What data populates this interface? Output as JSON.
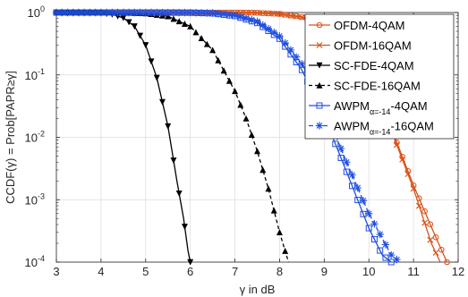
{
  "chart_data": {
    "type": "line",
    "xlabel": "γ in dB",
    "ylabel": "CCDF(γ) = Prob[PAPR≥γ]",
    "xlim": [
      3,
      12
    ],
    "ylim": [
      0.0001,
      1
    ],
    "yscale": "log",
    "grid": true,
    "legend_position": "top-right",
    "x_ticks": [
      "3",
      "4",
      "5",
      "6",
      "7",
      "8",
      "9",
      "10",
      "11",
      "12"
    ],
    "y_ticks": [
      {
        "base": "10",
        "exp": "0"
      },
      {
        "base": "10",
        "exp": "-1"
      },
      {
        "base": "10",
        "exp": "-2"
      },
      {
        "base": "10",
        "exp": "-3"
      },
      {
        "base": "10",
        "exp": "-4"
      }
    ],
    "series": [
      {
        "name": "OFDM-4QAM",
        "color": "#d95319",
        "dash": "",
        "marker": "circle",
        "x": [
          3.0,
          6.0,
          7.0,
          7.5,
          8.0,
          8.5,
          9.0,
          9.5,
          10.0,
          10.5,
          11.0,
          11.5,
          11.75
        ],
        "y": [
          1.0,
          1.0,
          0.999,
          0.99,
          0.95,
          0.85,
          0.6,
          0.3,
          0.085,
          0.014,
          0.0017,
          0.00025,
          0.0001
        ]
      },
      {
        "name": "OFDM-16QAM",
        "color": "#d95319",
        "dash": "",
        "marker": "x",
        "x": [
          3.0,
          6.0,
          7.0,
          7.5,
          8.0,
          8.5,
          9.0,
          9.5,
          10.0,
          10.5,
          11.0,
          11.4,
          11.6
        ],
        "y": [
          1.0,
          1.0,
          0.999,
          0.99,
          0.95,
          0.84,
          0.58,
          0.28,
          0.08,
          0.013,
          0.0015,
          0.0002,
          0.0001
        ]
      },
      {
        "name": "SC-FDE-4QAM",
        "color": "#000000",
        "dash": "",
        "marker": "triangle-down",
        "x": [
          3.0,
          3.5,
          4.0,
          4.25,
          4.5,
          4.75,
          5.0,
          5.25,
          5.5,
          5.7,
          5.85,
          5.95,
          6.0
        ],
        "y": [
          1.0,
          0.998,
          0.98,
          0.93,
          0.82,
          0.6,
          0.3,
          0.09,
          0.015,
          0.002,
          0.0005,
          0.00015,
          0.0001
        ]
      },
      {
        "name": "SC-FDE-16QAM",
        "color": "#000000",
        "dash": "4,3",
        "marker": "triangle-up",
        "x": [
          3.0,
          4.5,
          5.0,
          5.5,
          6.0,
          6.5,
          7.0,
          7.25,
          7.5,
          7.75,
          8.0,
          8.2
        ],
        "y": [
          1.0,
          0.995,
          0.97,
          0.87,
          0.6,
          0.25,
          0.055,
          0.02,
          0.006,
          0.0015,
          0.0003,
          0.0001
        ]
      },
      {
        "name": "AWPM",
        "name_sub": "α=-14",
        "name_suffix": "-4QAM",
        "color": "#1f4fe0",
        "dash": "",
        "marker": "square",
        "x": [
          3.0,
          5.0,
          6.0,
          6.5,
          7.0,
          7.5,
          8.0,
          8.5,
          9.0,
          9.5,
          10.0,
          10.3,
          10.5
        ],
        "y": [
          1.0,
          1.0,
          0.995,
          0.97,
          0.88,
          0.68,
          0.38,
          0.12,
          0.022,
          0.0028,
          0.00035,
          0.00013,
          0.0001
        ]
      },
      {
        "name": "AWPM",
        "name_sub": "α=-14",
        "name_suffix": "-16QAM",
        "color": "#1f4fe0",
        "dash": "5,3",
        "marker": "asterisk",
        "x": [
          3.0,
          5.0,
          6.0,
          6.5,
          7.0,
          7.5,
          8.0,
          8.5,
          9.0,
          9.5,
          10.0,
          10.5,
          10.7
        ],
        "y": [
          1.0,
          1.0,
          0.997,
          0.98,
          0.9,
          0.72,
          0.42,
          0.15,
          0.03,
          0.004,
          0.0006,
          0.00013,
          0.0001
        ]
      }
    ]
  }
}
